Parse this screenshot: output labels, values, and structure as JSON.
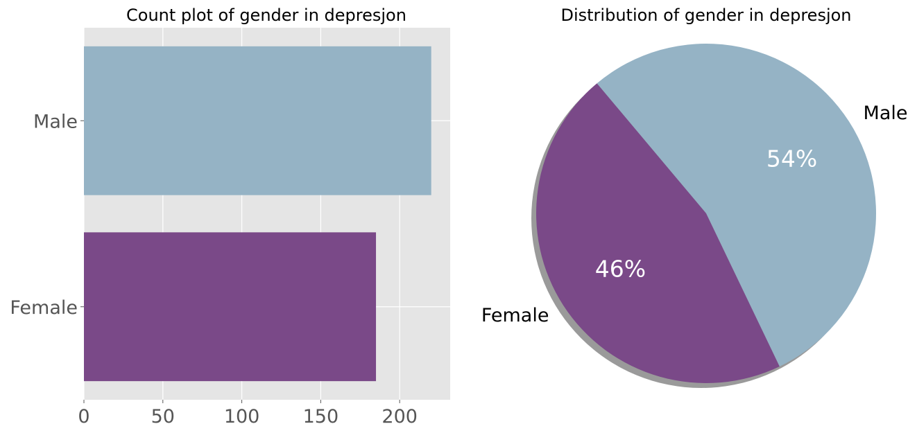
{
  "chart_data": [
    {
      "type": "bar",
      "orientation": "horizontal",
      "title": "Count plot of gender in depresjon",
      "categories": [
        "Male",
        "Female"
      ],
      "values": [
        220,
        185
      ],
      "colors": [
        "#95b3c5",
        "#7a4988"
      ],
      "xlim": [
        0,
        232
      ],
      "xticks": [
        0,
        50,
        100,
        150,
        200
      ],
      "grid": true,
      "background": "#e5e5e5"
    },
    {
      "type": "pie",
      "title": "Distribution of gender in depresjon",
      "labels": [
        "Male",
        "Female"
      ],
      "values": [
        54,
        46
      ],
      "percent_labels": [
        "54%",
        "46%"
      ],
      "colors": [
        "#95b3c5",
        "#7a4988"
      ],
      "shadow": true
    }
  ]
}
